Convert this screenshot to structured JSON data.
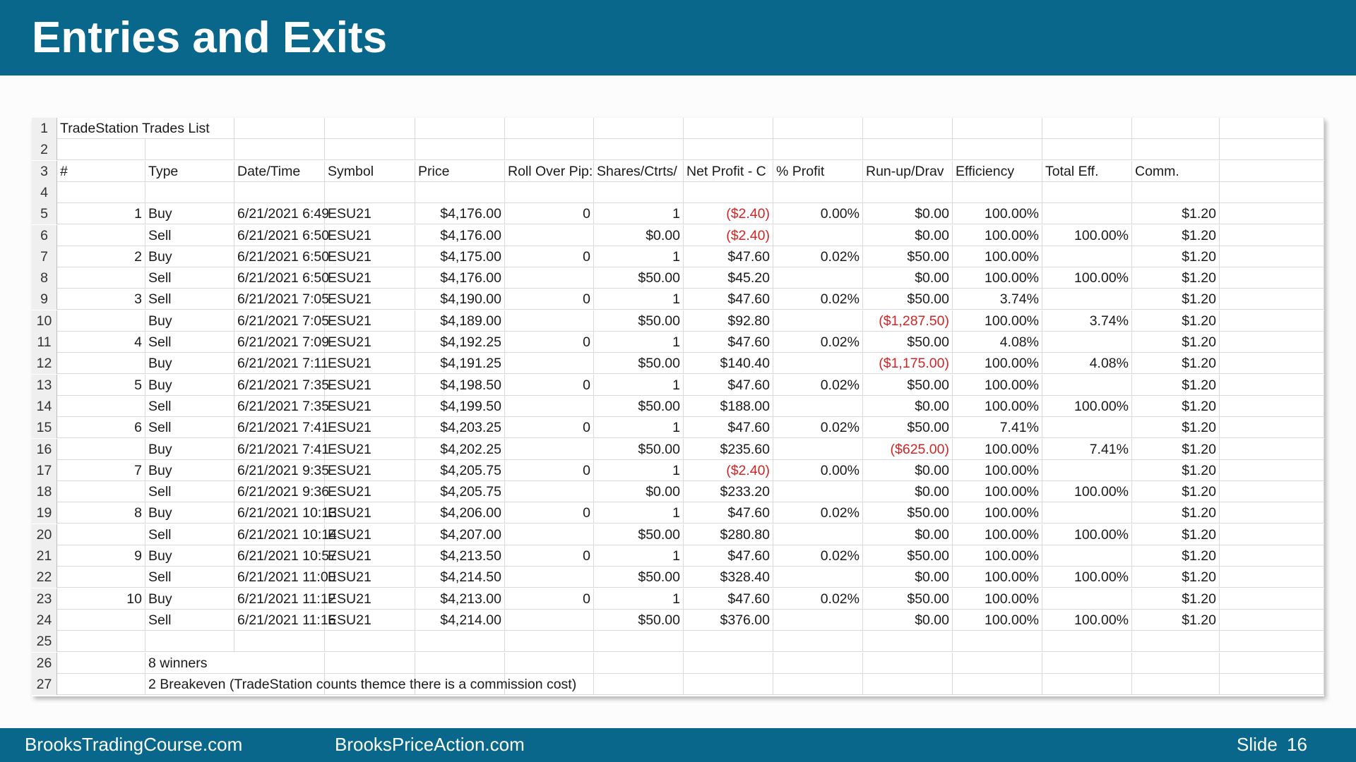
{
  "slide": {
    "title": "Entries and Exits",
    "footer_left": "BrooksTradingCourse.com",
    "footer_middle": "BrooksPriceAction.com",
    "slide_label": "Slide",
    "slide_number": "16"
  },
  "sheet": {
    "title_cell": "TradeStation Trades List",
    "headers": [
      "#",
      "Type",
      "Date/Time",
      "Symbol",
      "Price",
      "Roll Over Pip:",
      "Shares/Ctrts/",
      "Net Profit - C",
      "% Profit",
      "Run-up/Drav",
      "Efficiency",
      "Total Eff.",
      "Comm."
    ],
    "trades": [
      [
        "1",
        "Buy",
        "6/21/2021 6:49",
        "ESU21",
        "$4,176.00",
        "0",
        "1",
        "($2.40)",
        "0.00%",
        "$0.00",
        "100.00%",
        "",
        "$1.20"
      ],
      [
        "",
        "Sell",
        "6/21/2021 6:50",
        "ESU21",
        "$4,176.00",
        "",
        "$0.00",
        "($2.40)",
        "",
        "$0.00",
        "100.00%",
        "100.00%",
        "$1.20"
      ],
      [
        "2",
        "Buy",
        "6/21/2021 6:50",
        "ESU21",
        "$4,175.00",
        "0",
        "1",
        "$47.60",
        "0.02%",
        "$50.00",
        "100.00%",
        "",
        "$1.20"
      ],
      [
        "",
        "Sell",
        "6/21/2021 6:50",
        "ESU21",
        "$4,176.00",
        "",
        "$50.00",
        "$45.20",
        "",
        "$0.00",
        "100.00%",
        "100.00%",
        "$1.20"
      ],
      [
        "3",
        "Sell",
        "6/21/2021 7:05",
        "ESU21",
        "$4,190.00",
        "0",
        "1",
        "$47.60",
        "0.02%",
        "$50.00",
        "3.74%",
        "",
        "$1.20"
      ],
      [
        "",
        "Buy",
        "6/21/2021 7:05",
        "ESU21",
        "$4,189.00",
        "",
        "$50.00",
        "$92.80",
        "",
        "($1,287.50)",
        "100.00%",
        "3.74%",
        "$1.20"
      ],
      [
        "4",
        "Sell",
        "6/21/2021 7:09",
        "ESU21",
        "$4,192.25",
        "0",
        "1",
        "$47.60",
        "0.02%",
        "$50.00",
        "4.08%",
        "",
        "$1.20"
      ],
      [
        "",
        "Buy",
        "6/21/2021 7:11",
        "ESU21",
        "$4,191.25",
        "",
        "$50.00",
        "$140.40",
        "",
        "($1,175.00)",
        "100.00%",
        "4.08%",
        "$1.20"
      ],
      [
        "5",
        "Buy",
        "6/21/2021 7:35",
        "ESU21",
        "$4,198.50",
        "0",
        "1",
        "$47.60",
        "0.02%",
        "$50.00",
        "100.00%",
        "",
        "$1.20"
      ],
      [
        "",
        "Sell",
        "6/21/2021 7:35",
        "ESU21",
        "$4,199.50",
        "",
        "$50.00",
        "$188.00",
        "",
        "$0.00",
        "100.00%",
        "100.00%",
        "$1.20"
      ],
      [
        "6",
        "Sell",
        "6/21/2021 7:41",
        "ESU21",
        "$4,203.25",
        "0",
        "1",
        "$47.60",
        "0.02%",
        "$50.00",
        "7.41%",
        "",
        "$1.20"
      ],
      [
        "",
        "Buy",
        "6/21/2021 7:41",
        "ESU21",
        "$4,202.25",
        "",
        "$50.00",
        "$235.60",
        "",
        "($625.00)",
        "100.00%",
        "7.41%",
        "$1.20"
      ],
      [
        "7",
        "Buy",
        "6/21/2021 9:35",
        "ESU21",
        "$4,205.75",
        "0",
        "1",
        "($2.40)",
        "0.00%",
        "$0.00",
        "100.00%",
        "",
        "$1.20"
      ],
      [
        "",
        "Sell",
        "6/21/2021 9:36",
        "ESU21",
        "$4,205.75",
        "",
        "$0.00",
        "$233.20",
        "",
        "$0.00",
        "100.00%",
        "100.00%",
        "$1.20"
      ],
      [
        "8",
        "Buy",
        "6/21/2021 10:13",
        "ESU21",
        "$4,206.00",
        "0",
        "1",
        "$47.60",
        "0.02%",
        "$50.00",
        "100.00%",
        "",
        "$1.20"
      ],
      [
        "",
        "Sell",
        "6/21/2021 10:14",
        "ESU21",
        "$4,207.00",
        "",
        "$50.00",
        "$280.80",
        "",
        "$0.00",
        "100.00%",
        "100.00%",
        "$1.20"
      ],
      [
        "9",
        "Buy",
        "6/21/2021 10:57",
        "ESU21",
        "$4,213.50",
        "0",
        "1",
        "$47.60",
        "0.02%",
        "$50.00",
        "100.00%",
        "",
        "$1.20"
      ],
      [
        "",
        "Sell",
        "6/21/2021 11:00",
        "ESU21",
        "$4,214.50",
        "",
        "$50.00",
        "$328.40",
        "",
        "$0.00",
        "100.00%",
        "100.00%",
        "$1.20"
      ],
      [
        "10",
        "Buy",
        "6/21/2021 11:12",
        "ESU21",
        "$4,213.00",
        "0",
        "1",
        "$47.60",
        "0.02%",
        "$50.00",
        "100.00%",
        "",
        "$1.20"
      ],
      [
        "",
        "Sell",
        "6/21/2021 11:16",
        "ESU21",
        "$4,214.00",
        "",
        "$50.00",
        "$376.00",
        "",
        "$0.00",
        "100.00%",
        "100.00%",
        "$1.20"
      ]
    ],
    "notes": [
      "8 winners",
      "2 Breakeven (TradeStation counts themce there is a commission cost)"
    ],
    "negative_color": "#d32424"
  },
  "colors": {
    "banner": "#08678a"
  }
}
